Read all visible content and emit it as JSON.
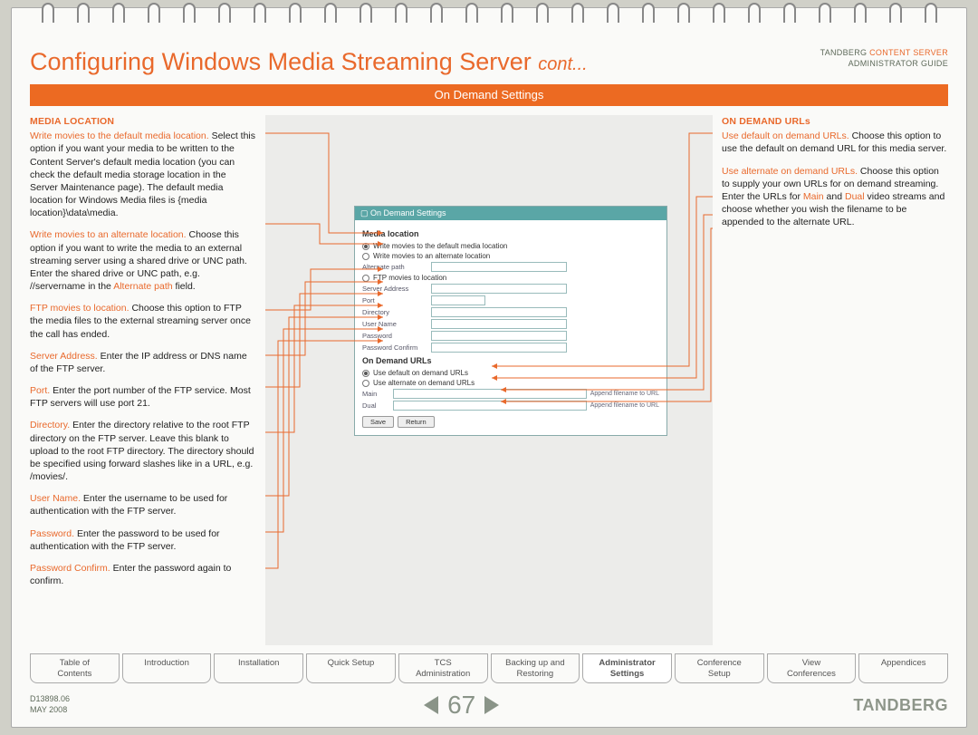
{
  "header": {
    "title_main": "Configuring Windows Media Streaming Server ",
    "title_cont": "cont...",
    "brand_line1_a": "TANDBERG ",
    "brand_line1_b": "CONTENT SERVER",
    "brand_line2": "ADMINISTRATOR GUIDE"
  },
  "bar": {
    "label": "On Demand Settings"
  },
  "left": {
    "heading": "MEDIA LOCATION",
    "items": [
      {
        "term": "Write movies to the default media location.",
        "text": " Select this option if you want your media to be written to the Content Server's default media location (you can check the default media storage location in the Server Maintenance page). The default media location for Windows Media files is {media location}\\data\\media."
      },
      {
        "term": "Write movies to an alternate location.",
        "text": " Choose this option if you want to write the media to an external streaming server using a shared drive or UNC path. Enter the shared drive or UNC path, e.g. //servername in the ",
        "term2": "Alternate path",
        "text2": " field."
      },
      {
        "term": "FTP movies to location.",
        "text": " Choose this option to FTP the media files to the external streaming server once the call has ended."
      },
      {
        "term": "Server Address.",
        "text": " Enter the IP address or DNS name of the FTP server."
      },
      {
        "term": "Port.",
        "text": " Enter the port number of the FTP service. Most FTP servers will use port 21."
      },
      {
        "term": "Directory.",
        "text": " Enter the directory relative to the root FTP directory on the FTP server. Leave this blank to upload to the root FTP directory. The directory should be specified using forward slashes like in a URL, e.g. /movies/."
      },
      {
        "term": "User Name.",
        "text": " Enter the username to be used for authentication with the FTP server."
      },
      {
        "term": "Password.",
        "text": " Enter the password to be used for authentication with the FTP server."
      },
      {
        "term": "Password Confirm.",
        "text": " Enter the password again to confirm."
      }
    ]
  },
  "right": {
    "heading": "ON DEMAND URLs",
    "items": [
      {
        "term": "Use default on demand URLs.",
        "text": " Choose this option to use the default on demand URL for this media server."
      },
      {
        "term": "Use alternate on demand URLs.",
        "text": " Choose this option to supply your own URLs for on demand streaming. Enter the URLs for ",
        "term2": "Main",
        "mid": " and ",
        "term3": "Dual",
        "text2": " video streams and choose whether you wish the filename to be appended to the alternate URL."
      }
    ]
  },
  "shot": {
    "titlebar": "On Demand Settings",
    "h1": "Media location",
    "r1": "Write movies to the default media location",
    "r2": "Write movies to an alternate location",
    "alt_label": "Alternate path",
    "r3": "FTP movies to location",
    "fields": {
      "server": "Server Address",
      "port": "Port",
      "dir": "Directory",
      "user": "User Name",
      "pass": "Password",
      "pass2": "Password Confirm"
    },
    "h2": "On Demand URLs",
    "u1": "Use default on demand URLs",
    "u2": "Use alternate on demand URLs",
    "main_label": "Main",
    "dual_label": "Dual",
    "append1": "Append filename to URL",
    "append2": "Append filename to URL",
    "save": "Save",
    "return": "Return"
  },
  "tabs": [
    "Table of\nContents",
    "Introduction",
    "Installation",
    "Quick Setup",
    "TCS\nAdministration",
    "Backing up and\nRestoring",
    "Administrator\nSettings",
    "Conference\nSetup",
    "View\nConferences",
    "Appendices"
  ],
  "active_tab_index": 6,
  "footer": {
    "docid": "D13898.06",
    "date": "MAY 2008",
    "page": "67",
    "brand": "TANDBERG"
  },
  "colors": {
    "accent": "#e9692c",
    "bar": "#ec6a22",
    "page_bg": "#fafaf8",
    "mid_bg": "#ececea",
    "muted": "#8a9488"
  }
}
